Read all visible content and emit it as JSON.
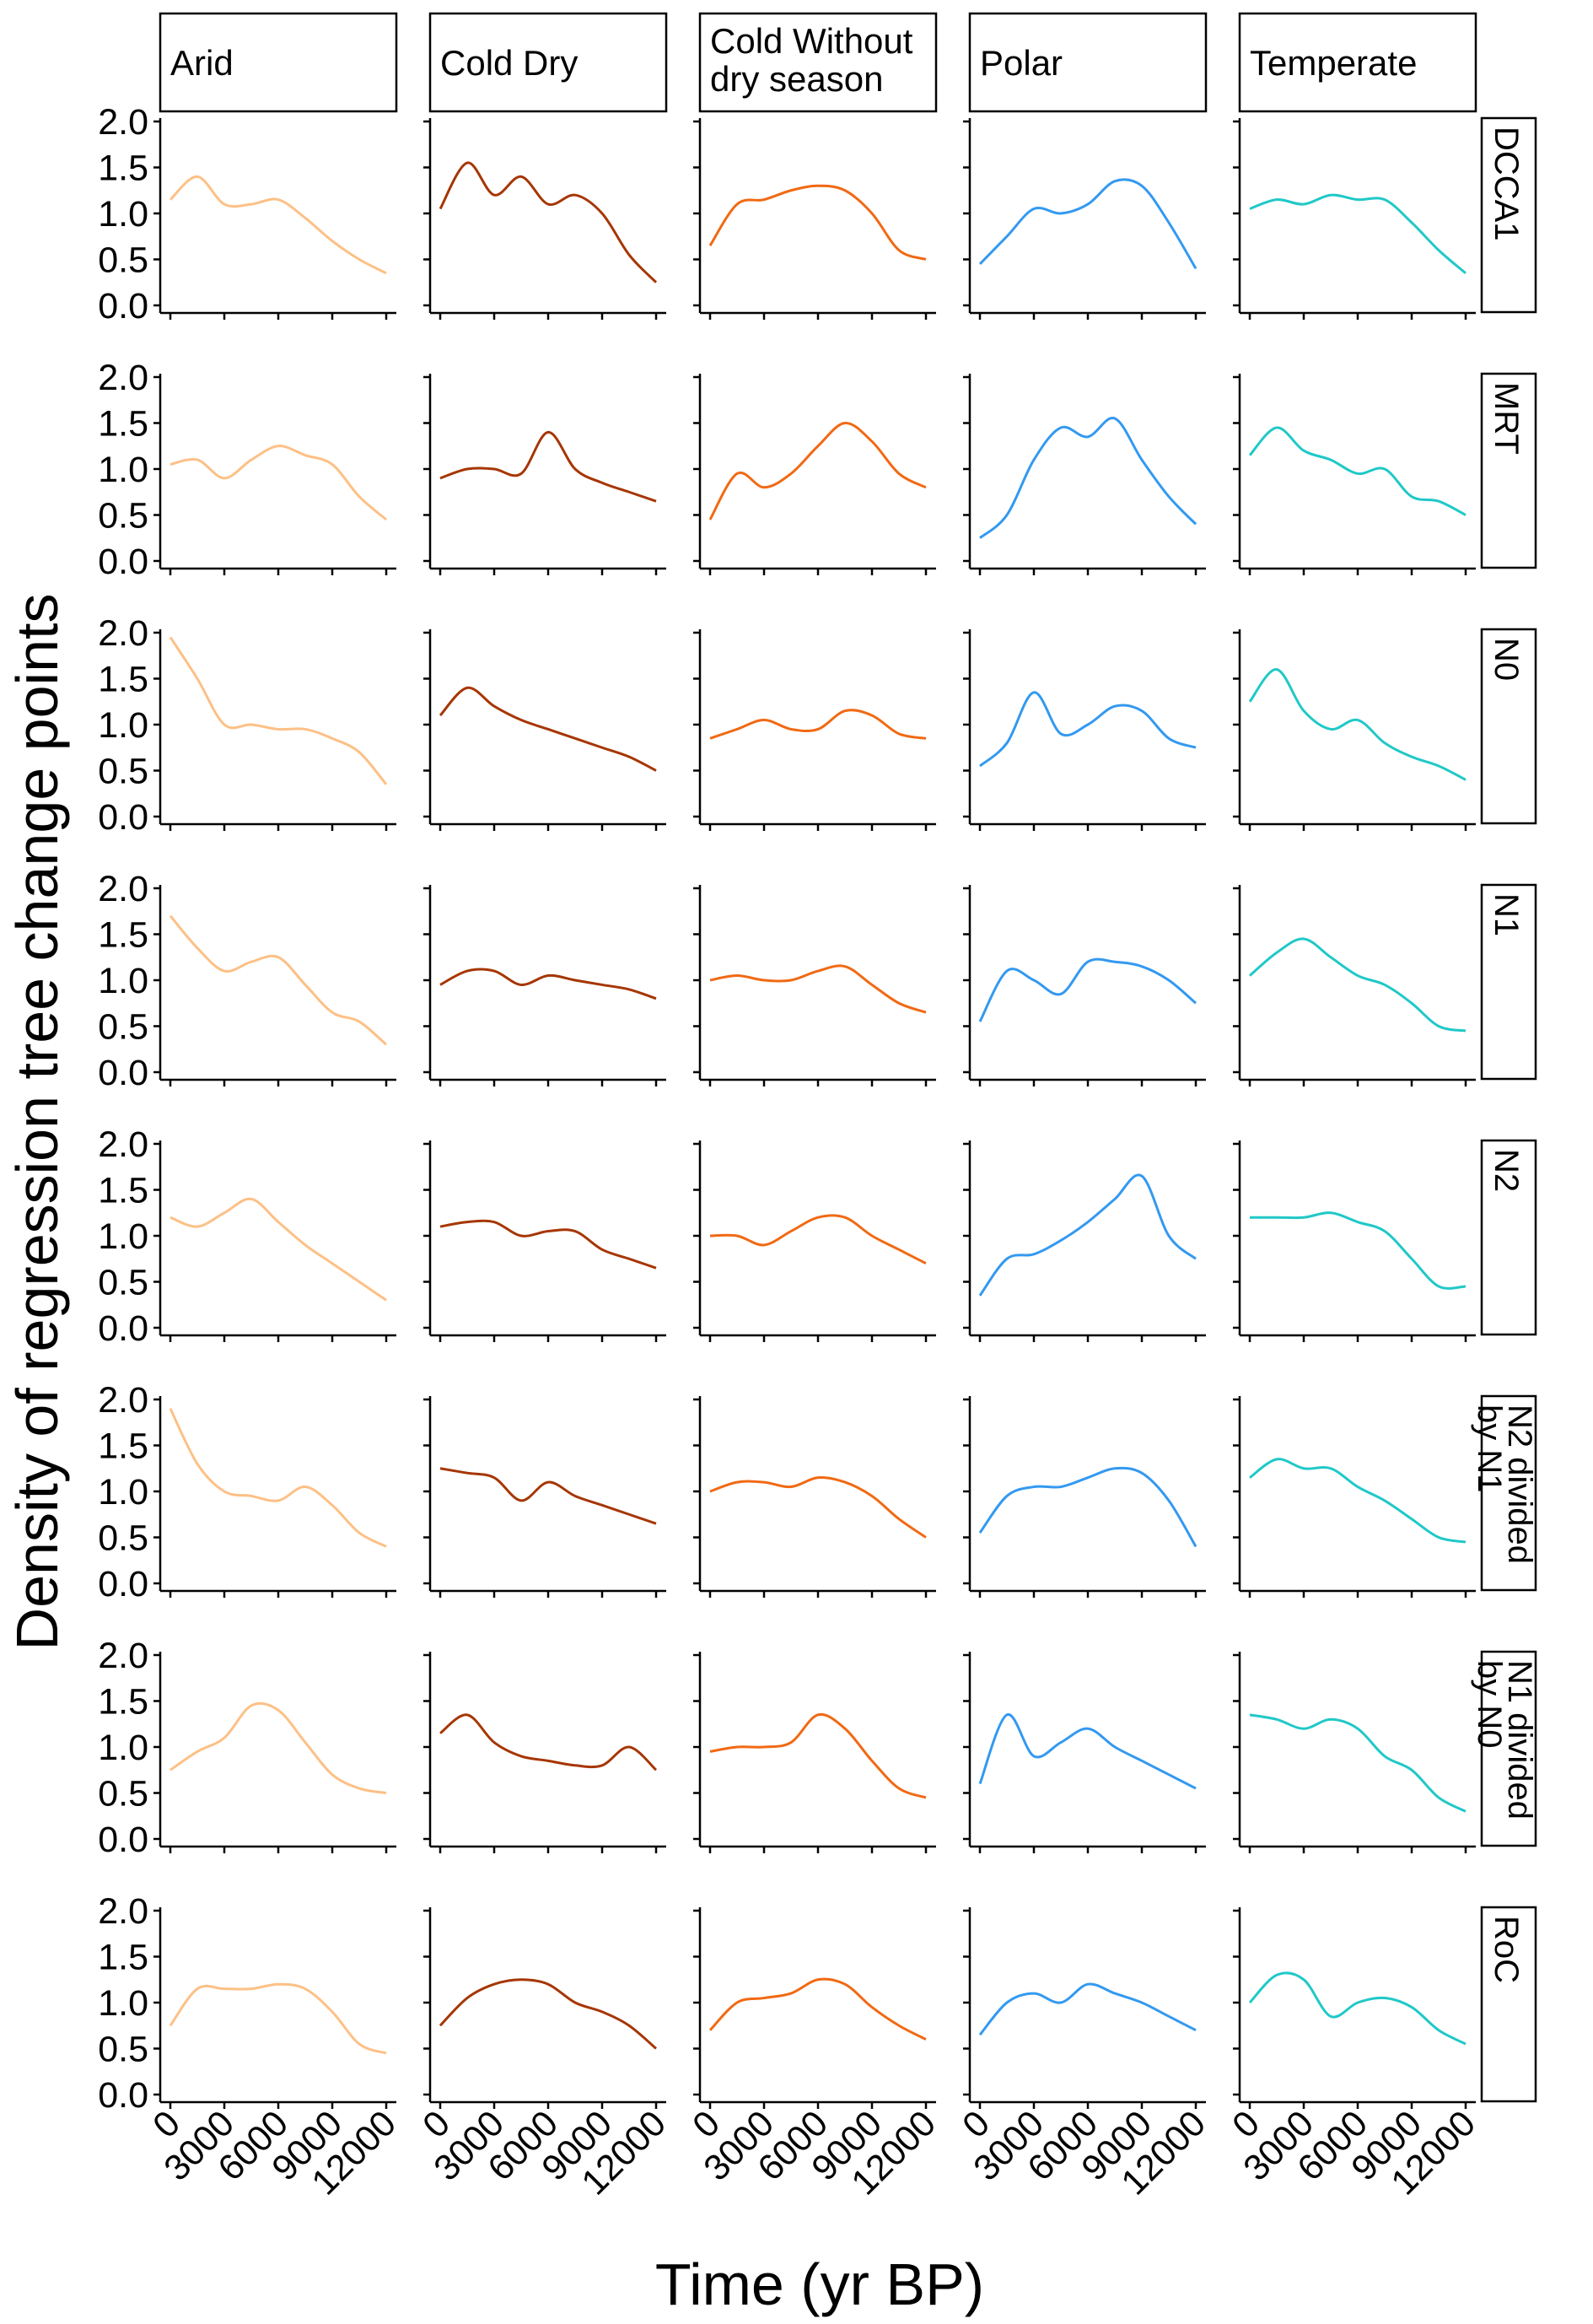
{
  "chart_data": {
    "type": "line",
    "title": "",
    "xlabel": "Time (yr BP)",
    "ylabel": "Density of regression tree change points",
    "xlim": [
      0,
      12000
    ],
    "ylim": [
      0,
      2
    ],
    "x_ticks": [
      0,
      3000,
      6000,
      9000,
      12000
    ],
    "x_tick_labels": [
      "0",
      "3000",
      "6000",
      "9000",
      "12000"
    ],
    "y_ticks": [
      0,
      0.5,
      1,
      1.5,
      2
    ],
    "y_tick_labels": [
      "0.0",
      "0.5",
      "1.0",
      "1.5",
      "2.0"
    ],
    "grid": false,
    "facet_columns": [
      {
        "label": "Arid",
        "color": "#FDC086"
      },
      {
        "label": "Cold Dry",
        "color": "#A63603"
      },
      {
        "label": "Cold Without dry season",
        "label_lines": [
          "Cold Without",
          "dry season"
        ],
        "color": "#F16913"
      },
      {
        "label": "Polar",
        "color": "#3399F0"
      },
      {
        "label": "Temperate",
        "color": "#20C8C8"
      }
    ],
    "facet_rows": [
      {
        "label": "DCCA1",
        "label_lines": [
          "DCCA1"
        ]
      },
      {
        "label": "MRT",
        "label_lines": [
          "MRT"
        ]
      },
      {
        "label": "N0",
        "label_lines": [
          "N0"
        ]
      },
      {
        "label": "N1",
        "label_lines": [
          "N1"
        ]
      },
      {
        "label": "N2",
        "label_lines": [
          "N2"
        ]
      },
      {
        "label": "N2 divided by N1",
        "label_lines": [
          "N2 divided",
          "by N1"
        ]
      },
      {
        "label": "N1 divided by N0",
        "label_lines": [
          "N1 divided",
          "by N0"
        ]
      },
      {
        "label": "RoC",
        "label_lines": [
          "RoC"
        ]
      }
    ],
    "x": [
      0,
      1500,
      3000,
      4500,
      6000,
      7500,
      9000,
      10500,
      12000
    ],
    "panels": [
      [
        [
          1.15,
          1.4,
          1.1,
          1.1,
          1.15,
          0.95,
          0.7,
          0.5,
          0.35
        ],
        [
          1.05,
          1.55,
          1.2,
          1.4,
          1.1,
          1.2,
          1.0,
          0.55,
          0.25
        ],
        [
          0.65,
          1.1,
          1.15,
          1.25,
          1.3,
          1.25,
          1.0,
          0.6,
          0.5
        ],
        [
          0.45,
          0.75,
          1.05,
          1.0,
          1.1,
          1.35,
          1.3,
          0.9,
          0.4
        ],
        [
          1.05,
          1.15,
          1.1,
          1.2,
          1.15,
          1.15,
          0.9,
          0.6,
          0.35
        ]
      ],
      [
        [
          1.05,
          1.1,
          0.9,
          1.1,
          1.25,
          1.15,
          1.05,
          0.7,
          0.45
        ],
        [
          0.9,
          1.0,
          1.0,
          0.95,
          1.4,
          1.0,
          0.85,
          0.75,
          0.65
        ],
        [
          0.45,
          0.95,
          0.8,
          0.95,
          1.25,
          1.5,
          1.3,
          0.95,
          0.8
        ],
        [
          0.25,
          0.5,
          1.1,
          1.45,
          1.35,
          1.55,
          1.1,
          0.7,
          0.4
        ],
        [
          1.15,
          1.45,
          1.2,
          1.1,
          0.95,
          1.0,
          0.7,
          0.65,
          0.5
        ]
      ],
      [
        [
          1.95,
          1.5,
          1.0,
          1.0,
          0.95,
          0.95,
          0.85,
          0.7,
          0.35
        ],
        [
          1.1,
          1.4,
          1.2,
          1.05,
          0.95,
          0.85,
          0.75,
          0.65,
          0.5
        ],
        [
          0.85,
          0.95,
          1.05,
          0.95,
          0.95,
          1.15,
          1.1,
          0.9,
          0.85
        ],
        [
          0.55,
          0.8,
          1.35,
          0.9,
          1.0,
          1.2,
          1.15,
          0.85,
          0.75
        ],
        [
          1.25,
          1.6,
          1.15,
          0.95,
          1.05,
          0.8,
          0.65,
          0.55,
          0.4
        ]
      ],
      [
        [
          1.7,
          1.35,
          1.1,
          1.2,
          1.25,
          0.95,
          0.65,
          0.55,
          0.3
        ],
        [
          0.95,
          1.1,
          1.1,
          0.95,
          1.05,
          1.0,
          0.95,
          0.9,
          0.8
        ],
        [
          1.0,
          1.05,
          1.0,
          1.0,
          1.1,
          1.15,
          0.95,
          0.75,
          0.65
        ],
        [
          0.55,
          1.1,
          1.0,
          0.85,
          1.2,
          1.2,
          1.15,
          1.0,
          0.75
        ],
        [
          1.05,
          1.3,
          1.45,
          1.25,
          1.05,
          0.95,
          0.75,
          0.5,
          0.45
        ]
      ],
      [
        [
          1.2,
          1.1,
          1.25,
          1.4,
          1.15,
          0.9,
          0.7,
          0.5,
          0.3
        ],
        [
          1.1,
          1.15,
          1.15,
          1.0,
          1.05,
          1.05,
          0.85,
          0.75,
          0.65
        ],
        [
          1.0,
          1.0,
          0.9,
          1.05,
          1.2,
          1.2,
          1.0,
          0.85,
          0.7
        ],
        [
          0.35,
          0.75,
          0.8,
          0.95,
          1.15,
          1.4,
          1.65,
          1.0,
          0.75
        ],
        [
          1.2,
          1.2,
          1.2,
          1.25,
          1.15,
          1.05,
          0.75,
          0.45,
          0.45
        ]
      ],
      [
        [
          1.9,
          1.3,
          1.0,
          0.95,
          0.9,
          1.05,
          0.85,
          0.55,
          0.4
        ],
        [
          1.25,
          1.2,
          1.15,
          0.9,
          1.1,
          0.95,
          0.85,
          0.75,
          0.65
        ],
        [
          1.0,
          1.1,
          1.1,
          1.05,
          1.15,
          1.1,
          0.95,
          0.7,
          0.5
        ],
        [
          0.55,
          0.95,
          1.05,
          1.05,
          1.15,
          1.25,
          1.2,
          0.9,
          0.4
        ],
        [
          1.15,
          1.35,
          1.25,
          1.25,
          1.05,
          0.9,
          0.7,
          0.5,
          0.45
        ]
      ],
      [
        [
          0.75,
          0.95,
          1.1,
          1.45,
          1.4,
          1.05,
          0.7,
          0.55,
          0.5
        ],
        [
          1.15,
          1.35,
          1.05,
          0.9,
          0.85,
          0.8,
          0.8,
          1.0,
          0.75
        ],
        [
          0.95,
          1.0,
          1.0,
          1.05,
          1.35,
          1.2,
          0.85,
          0.55,
          0.45
        ],
        [
          0.6,
          1.35,
          0.9,
          1.05,
          1.2,
          1.0,
          0.85,
          0.7,
          0.55
        ],
        [
          1.35,
          1.3,
          1.2,
          1.3,
          1.2,
          0.9,
          0.75,
          0.45,
          0.3
        ]
      ],
      [
        [
          0.75,
          1.15,
          1.15,
          1.15,
          1.2,
          1.15,
          0.9,
          0.55,
          0.45
        ],
        [
          0.75,
          1.05,
          1.2,
          1.25,
          1.2,
          1.0,
          0.9,
          0.75,
          0.5
        ],
        [
          0.7,
          1.0,
          1.05,
          1.1,
          1.25,
          1.2,
          0.95,
          0.75,
          0.6
        ],
        [
          0.65,
          1.0,
          1.1,
          1.0,
          1.2,
          1.1,
          1.0,
          0.85,
          0.7
        ],
        [
          1.0,
          1.3,
          1.25,
          0.85,
          1.0,
          1.05,
          0.95,
          0.7,
          0.55
        ]
      ]
    ]
  }
}
